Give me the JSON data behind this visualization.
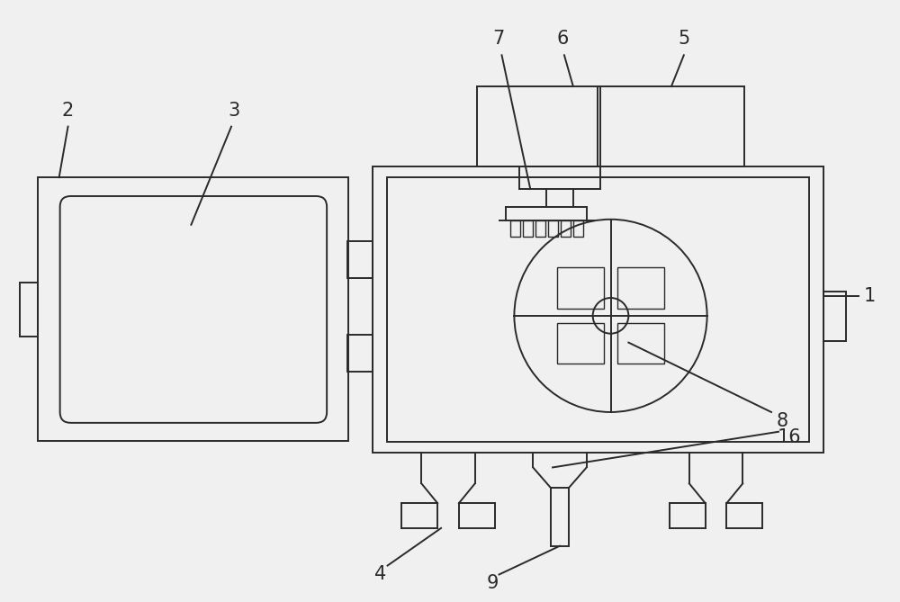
{
  "bg_color": "#f0f0f0",
  "line_color": "#2a2a2a",
  "lw": 1.4,
  "fig_width": 10.0,
  "fig_height": 6.69
}
